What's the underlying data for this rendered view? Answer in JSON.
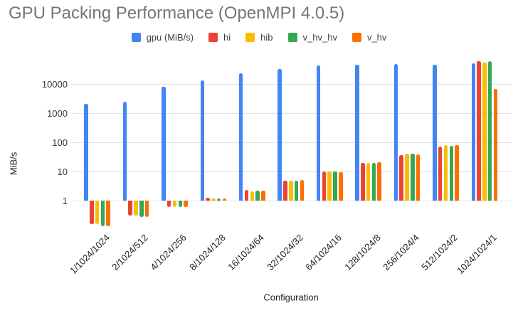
{
  "title": "GPU Packing Performance (OpenMPI 4.0.5)",
  "chart_data": {
    "type": "bar",
    "title": "GPU Packing Performance (OpenMPI 4.0.5)",
    "xlabel": "Configuration",
    "ylabel": "MiB/s",
    "y_scale": "log",
    "ylim": [
      0.1,
      100000
    ],
    "y_ticks": [
      1,
      10,
      100,
      1000,
      10000
    ],
    "y_tick_labels": [
      "1",
      "10",
      "100",
      "1000",
      "10000"
    ],
    "grid": true,
    "legend_position": "top",
    "bar_baseline": 1,
    "categories": [
      "1/1024/1024",
      "2/1024/512",
      "4/1024/256",
      "8/1024/128",
      "16/1024/64",
      "32/1024/32",
      "64/1024/16",
      "128/1024/8",
      "256/1024/4",
      "512/1024/2",
      "1024/1024/1"
    ],
    "series": [
      {
        "name": "gpu (MiB/s)",
        "color": "#4285F4",
        "values": [
          2100,
          2500,
          8000,
          13000,
          23000,
          33000,
          42000,
          45000,
          47000,
          45000,
          52000
        ]
      },
      {
        "name": "hi",
        "color": "#EA4335",
        "values": [
          0.16,
          0.3,
          0.62,
          1.25,
          2.3,
          4.8,
          9.8,
          20,
          36,
          72,
          59000
        ]
      },
      {
        "name": "hib",
        "color": "#FBBC04",
        "values": [
          0.16,
          0.3,
          0.62,
          1.2,
          2.1,
          4.7,
          9.8,
          20,
          40,
          80,
          54000
        ]
      },
      {
        "name": "v_hv_hv",
        "color": "#34A853",
        "values": [
          0.13,
          0.28,
          0.6,
          1.2,
          2.2,
          4.7,
          10.2,
          20,
          40,
          77,
          62000
        ]
      },
      {
        "name": "v_hv",
        "color": "#FF6D01",
        "values": [
          0.13,
          0.28,
          0.62,
          1.2,
          2.2,
          5.0,
          9.5,
          20.5,
          39,
          78,
          6700
        ]
      }
    ]
  }
}
